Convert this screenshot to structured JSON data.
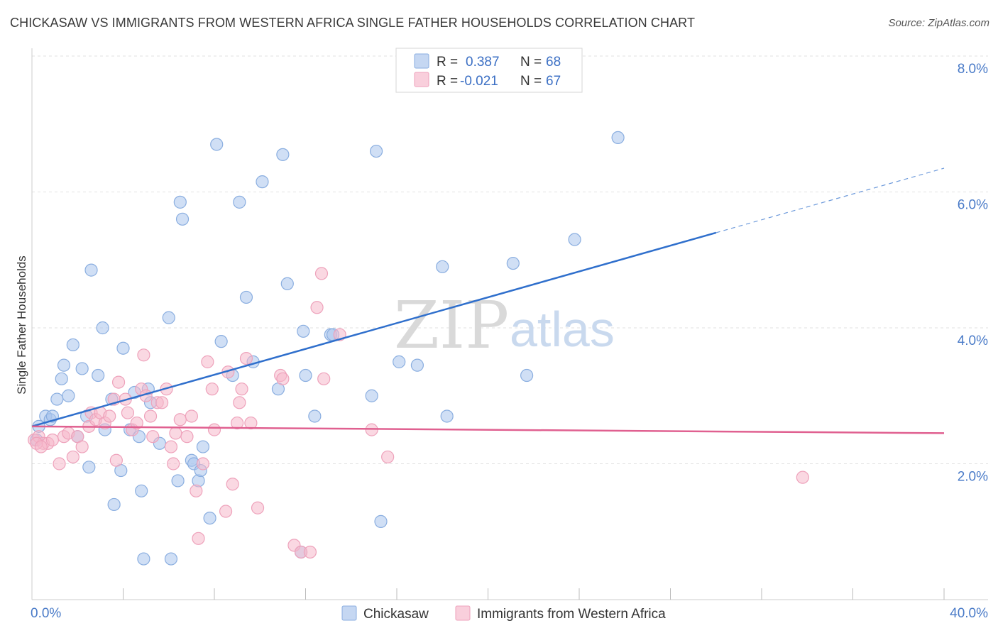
{
  "header": {
    "title": "CHICKASAW VS IMMIGRANTS FROM WESTERN AFRICA SINGLE FATHER HOUSEHOLDS CORRELATION CHART",
    "source": "Source: ZipAtlas.com"
  },
  "watermark": {
    "zip": "ZIP",
    "atlas": "atlas"
  },
  "legend": {
    "r_label": "R =",
    "n_label": "N =",
    "items": [
      {
        "r": "0.387",
        "n": "68",
        "color": "#a9c4ec"
      },
      {
        "r": "-0.021",
        "n": "67",
        "color": "#f5b8cb"
      }
    ]
  },
  "chart_data": {
    "type": "scatter",
    "title": "CHICKASAW VS IMMIGRANTS FROM WESTERN AFRICA SINGLE FATHER HOUSEHOLDS CORRELATION CHART",
    "xlabel": "",
    "ylabel": "Single Father Households",
    "xlim": [
      0,
      40
    ],
    "ylim": [
      0,
      8
    ],
    "x_tick_labels": [
      "0.0%",
      "40.0%"
    ],
    "y_ticks": [
      2,
      4,
      6,
      8
    ],
    "y_tick_labels": [
      "2.0%",
      "4.0%",
      "6.0%",
      "8.0%"
    ],
    "grid": true,
    "legend_position": "top-center",
    "series": [
      {
        "name": "Chickasaw",
        "color": "#a9c4ec",
        "line_color": "#2f6fcc",
        "trend": {
          "x": [
            0,
            30
          ],
          "y": [
            2.55,
            5.4
          ],
          "dashed_to": [
            40,
            6.35
          ]
        },
        "points": [
          [
            0.3,
            2.55
          ],
          [
            0.6,
            2.7
          ],
          [
            0.8,
            2.65
          ],
          [
            0.9,
            2.7
          ],
          [
            1.1,
            2.95
          ],
          [
            1.3,
            3.25
          ],
          [
            1.4,
            3.45
          ],
          [
            1.6,
            3.0
          ],
          [
            1.8,
            3.75
          ],
          [
            2.0,
            2.4
          ],
          [
            2.2,
            3.4
          ],
          [
            2.4,
            2.7
          ],
          [
            2.5,
            1.95
          ],
          [
            2.6,
            4.85
          ],
          [
            2.9,
            3.3
          ],
          [
            3.1,
            4.0
          ],
          [
            3.2,
            2.5
          ],
          [
            3.5,
            2.95
          ],
          [
            3.6,
            1.4
          ],
          [
            3.9,
            1.9
          ],
          [
            4.0,
            3.7
          ],
          [
            4.3,
            2.5
          ],
          [
            4.5,
            3.05
          ],
          [
            4.7,
            2.4
          ],
          [
            4.8,
            1.6
          ],
          [
            4.9,
            0.6
          ],
          [
            5.1,
            3.1
          ],
          [
            5.2,
            2.9
          ],
          [
            5.6,
            2.3
          ],
          [
            6.0,
            4.15
          ],
          [
            6.1,
            0.6
          ],
          [
            6.4,
            1.75
          ],
          [
            6.5,
            5.85
          ],
          [
            6.6,
            5.6
          ],
          [
            7.0,
            2.05
          ],
          [
            7.1,
            2.0
          ],
          [
            7.3,
            1.75
          ],
          [
            7.4,
            1.9
          ],
          [
            7.5,
            2.25
          ],
          [
            7.8,
            1.2
          ],
          [
            8.1,
            6.7
          ],
          [
            8.3,
            3.8
          ],
          [
            8.8,
            3.3
          ],
          [
            9.1,
            5.85
          ],
          [
            9.4,
            4.45
          ],
          [
            9.7,
            3.5
          ],
          [
            10.1,
            6.15
          ],
          [
            10.8,
            3.1
          ],
          [
            11.0,
            6.55
          ],
          [
            11.2,
            4.65
          ],
          [
            11.8,
            0.7
          ],
          [
            11.9,
            3.95
          ],
          [
            12.0,
            3.3
          ],
          [
            12.4,
            2.7
          ],
          [
            13.1,
            3.9
          ],
          [
            13.2,
            3.9
          ],
          [
            14.9,
            3.0
          ],
          [
            15.1,
            6.6
          ],
          [
            15.3,
            1.15
          ],
          [
            16.1,
            3.5
          ],
          [
            16.9,
            3.45
          ],
          [
            18.0,
            4.9
          ],
          [
            18.2,
            2.7
          ],
          [
            21.1,
            4.95
          ],
          [
            21.7,
            3.3
          ],
          [
            23.8,
            5.3
          ],
          [
            25.7,
            6.8
          ],
          [
            0.2,
            2.35
          ]
        ]
      },
      {
        "name": "Immigrants from Western Africa",
        "color": "#f5b8cb",
        "line_color": "#e06090",
        "trend": {
          "x": [
            0,
            40
          ],
          "y": [
            2.55,
            2.45
          ]
        },
        "points": [
          [
            0.1,
            2.35
          ],
          [
            0.3,
            2.4
          ],
          [
            0.5,
            2.3
          ],
          [
            0.7,
            2.3
          ],
          [
            0.9,
            2.35
          ],
          [
            1.2,
            2.0
          ],
          [
            1.4,
            2.4
          ],
          [
            1.6,
            2.45
          ],
          [
            1.8,
            2.1
          ],
          [
            2.0,
            2.4
          ],
          [
            2.2,
            2.25
          ],
          [
            2.5,
            2.55
          ],
          [
            2.6,
            2.75
          ],
          [
            2.8,
            2.65
          ],
          [
            3.0,
            2.75
          ],
          [
            3.2,
            2.6
          ],
          [
            3.4,
            2.7
          ],
          [
            3.6,
            2.95
          ],
          [
            3.7,
            2.05
          ],
          [
            3.8,
            3.2
          ],
          [
            4.1,
            2.95
          ],
          [
            4.2,
            2.75
          ],
          [
            4.4,
            2.5
          ],
          [
            4.6,
            2.6
          ],
          [
            4.8,
            3.1
          ],
          [
            4.9,
            3.6
          ],
          [
            5.0,
            3.0
          ],
          [
            5.2,
            2.7
          ],
          [
            5.3,
            2.4
          ],
          [
            5.5,
            2.9
          ],
          [
            5.7,
            2.9
          ],
          [
            5.9,
            3.1
          ],
          [
            6.1,
            2.25
          ],
          [
            6.2,
            2.0
          ],
          [
            6.3,
            2.45
          ],
          [
            6.5,
            2.65
          ],
          [
            6.8,
            2.4
          ],
          [
            7.0,
            2.7
          ],
          [
            7.2,
            1.6
          ],
          [
            7.3,
            0.9
          ],
          [
            7.5,
            2.0
          ],
          [
            7.7,
            3.5
          ],
          [
            7.9,
            3.1
          ],
          [
            8.0,
            2.5
          ],
          [
            8.5,
            1.3
          ],
          [
            8.6,
            3.35
          ],
          [
            8.8,
            1.7
          ],
          [
            9.0,
            2.6
          ],
          [
            9.1,
            2.9
          ],
          [
            9.2,
            3.1
          ],
          [
            9.4,
            3.55
          ],
          [
            9.6,
            2.6
          ],
          [
            9.9,
            1.35
          ],
          [
            10.9,
            3.3
          ],
          [
            11.0,
            3.25
          ],
          [
            11.5,
            0.8
          ],
          [
            11.8,
            0.7
          ],
          [
            12.2,
            0.7
          ],
          [
            12.5,
            4.3
          ],
          [
            12.7,
            4.8
          ],
          [
            12.8,
            3.25
          ],
          [
            13.5,
            3.9
          ],
          [
            14.9,
            2.5
          ],
          [
            15.6,
            2.1
          ],
          [
            33.8,
            1.8
          ],
          [
            0.2,
            2.3
          ],
          [
            0.4,
            2.25
          ]
        ]
      }
    ]
  },
  "bottom_legend": {
    "items": [
      {
        "label": "Chickasaw",
        "color": "#a9c4ec"
      },
      {
        "label": "Immigrants from Western Africa",
        "color": "#f5b8cb"
      }
    ]
  }
}
